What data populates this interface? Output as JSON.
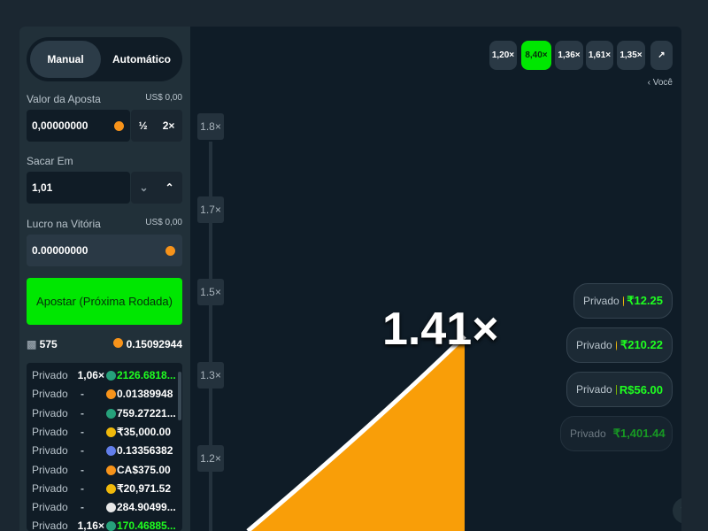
{
  "mode_tabs": [
    "Manual",
    "Automático"
  ],
  "bet_amount": {
    "label": "Valor da Aposta",
    "usd": "US$ 0,00",
    "value": "0,00000000",
    "half": "½",
    "double": "2×"
  },
  "cashout": {
    "label": "Sacar Em",
    "value": "1,01"
  },
  "profit": {
    "label": "Lucro na Vitória",
    "usd": "US$ 0,00",
    "value": "0.00000000"
  },
  "bet_button": "Apostar (Próxima Rodada)",
  "stats": {
    "players": "575",
    "total": "0.15092944"
  },
  "bets": [
    {
      "player": "Privado",
      "multiplier": "1,06×",
      "amount": "2126.6818..."
    },
    {
      "player": "Privado",
      "multiplier": "-",
      "amount": "0.01389948"
    },
    {
      "player": "Privado",
      "multiplier": "-",
      "amount": "759.27221..."
    },
    {
      "player": "Privado",
      "multiplier": "-",
      "amount": "₹35,000.00"
    },
    {
      "player": "Privado",
      "multiplier": "-",
      "amount": "0.13356382"
    },
    {
      "player": "Privado",
      "multiplier": "-",
      "amount": "CA$375.00"
    },
    {
      "player": "Privado",
      "multiplier": "-",
      "amount": "₹20,971.52"
    },
    {
      "player": "Privado",
      "multiplier": "-",
      "amount": "284.90499..."
    },
    {
      "player": "Privado",
      "multiplier": "1,16×",
      "amount": "170.46885..."
    }
  ],
  "history": [
    "1,20×",
    "8,40×",
    "1,36×",
    "1,61×",
    "1,35×"
  ],
  "history_link": "‹ Você",
  "y_axis": [
    "1.8×",
    "1.7×",
    "1.5×",
    "1.3×",
    "1.2×"
  ],
  "multiplier": "1.41×",
  "live_wins": [
    {
      "player": "Privado",
      "amount": "₹12.25"
    },
    {
      "player": "Privado",
      "amount": "₹210.22"
    },
    {
      "player": "Privado",
      "amount": "R$56.00"
    },
    {
      "player": "Privado",
      "amount": "₹1,401.44"
    }
  ]
}
